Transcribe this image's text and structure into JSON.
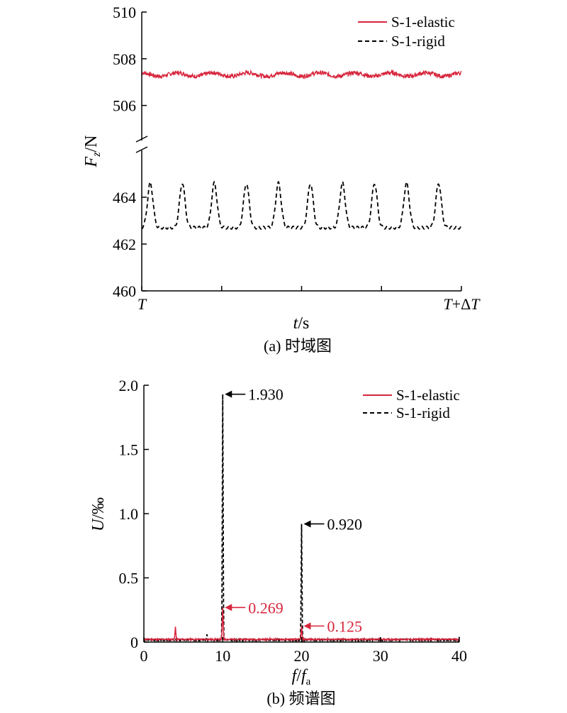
{
  "chart_data": [
    {
      "type": "line",
      "panel": "(a) 时域图",
      "caption": "(a) 时域图",
      "ylabel": "Fz/N",
      "ylabel_main": "F",
      "ylabel_sub": "z",
      "ylabel_unit": "/N",
      "xlabel": "t/s",
      "xlabel_var": "t",
      "xlabel_unit": "/s",
      "x_tick_labels": [
        "T",
        "T+ΔT"
      ],
      "x_start_var": "T",
      "x_end_var": "T",
      "x_end_op": "+Δ",
      "y_axis_break": true,
      "ylim_upper": [
        504.5,
        510
      ],
      "ylim_lower": [
        460,
        466
      ],
      "yticks_upper": [
        506,
        508,
        510
      ],
      "yticks_lower": [
        460,
        462,
        464
      ],
      "series": [
        {
          "name": "S-1-elastic",
          "color": "#d7263d",
          "style": "solid",
          "mean": 507.3,
          "amplitude": 0.25,
          "periods": 9
        },
        {
          "name": "S-1-rigid",
          "color": "#000000",
          "style": "dashed",
          "min": 462.7,
          "max": 464.6,
          "periods": 10
        }
      ]
    },
    {
      "type": "line",
      "panel": "(b) 频谱图",
      "caption": "(b) 频谱图",
      "ylabel": "U/‰",
      "ylabel_var": "U",
      "ylabel_unit": "/‰",
      "xlabel": "f/fa",
      "xlabel_var": "f",
      "xlabel_sep": "/",
      "xlabel_sub_var": "f",
      "xlabel_sub": "a",
      "xlim": [
        0,
        40
      ],
      "ylim": [
        0,
        2.0
      ],
      "xticks": [
        0,
        10,
        20,
        30,
        40
      ],
      "yticks": [
        0,
        0.5,
        1.0,
        1.5,
        2.0
      ],
      "ytick_labels": [
        "0",
        "0.5",
        "1.0",
        "1.5",
        "2.0"
      ],
      "series": [
        {
          "name": "S-1-elastic",
          "color": "#d7263d",
          "style": "solid",
          "peaks": [
            {
              "x": 4,
              "y": 0.12
            },
            {
              "x": 10,
              "y": 0.269
            },
            {
              "x": 20,
              "y": 0.125
            },
            {
              "x": 16,
              "y": 0.03
            }
          ]
        },
        {
          "name": "S-1-rigid",
          "color": "#000000",
          "style": "dashed",
          "peaks": [
            {
              "x": 10,
              "y": 1.93
            },
            {
              "x": 20,
              "y": 0.92
            },
            {
              "x": 8,
              "y": 0.06
            },
            {
              "x": 40,
              "y": 0.04
            }
          ]
        }
      ],
      "annotations": [
        {
          "label": "1.930",
          "x": 10,
          "y": 1.93,
          "color": "#000000"
        },
        {
          "label": "0.920",
          "x": 20,
          "y": 0.92,
          "color": "#000000"
        },
        {
          "label": "0.269",
          "x": 10,
          "y": 0.269,
          "color": "#d7263d"
        },
        {
          "label": "0.125",
          "x": 20,
          "y": 0.125,
          "color": "#d7263d"
        }
      ]
    }
  ]
}
